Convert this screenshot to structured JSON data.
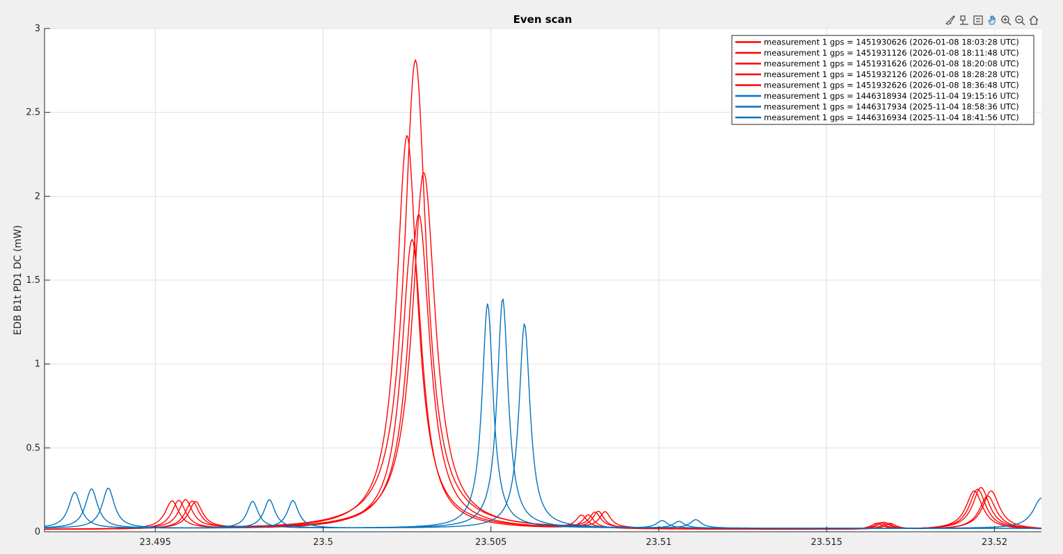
{
  "chart_data": {
    "type": "line",
    "title": "Even scan",
    "xlabel": "",
    "ylabel": "EDB B1t PD1 DC (mW)",
    "xlim": [
      23.4917,
      23.5214
    ],
    "ylim": [
      0,
      3
    ],
    "xticks": [
      23.495,
      23.5,
      23.505,
      23.51,
      23.515,
      23.52
    ],
    "xtick_labels": [
      "23.495",
      "23.5",
      "23.505",
      "23.51",
      "23.515",
      "23.52"
    ],
    "yticks": [
      0,
      0.5,
      1,
      1.5,
      2,
      2.5,
      3
    ],
    "ytick_labels": [
      "0",
      "0.5",
      "1",
      "1.5",
      "2",
      "2.5",
      "3"
    ],
    "grid": true,
    "legend_position": "top-right",
    "series": [
      {
        "name": "measurement 1 gps = 1451930626 (2026-01-08 18:03:28 UTC)",
        "color": "#ff0000",
        "baseline": 0.012,
        "peaks": [
          [
            23.4955,
            0.165,
            0.00025
          ],
          [
            23.5025,
            2.35,
            0.00038
          ],
          [
            23.5077,
            0.075,
            0.0002
          ],
          [
            23.5194,
            0.23,
            0.0003
          ],
          [
            23.5165,
            0.035,
            0.0002
          ]
        ]
      },
      {
        "name": "measurement 1 gps = 1451931126 (2026-01-08 18:11:48 UTC)",
        "color": "#ff0000",
        "baseline": 0.012,
        "peaks": [
          [
            23.4957,
            0.17,
            0.00025
          ],
          [
            23.50265,
            1.73,
            0.00038
          ],
          [
            23.5079,
            0.08,
            0.0002
          ],
          [
            23.5195,
            0.24,
            0.0003
          ],
          [
            23.5166,
            0.038,
            0.0002
          ]
        ]
      },
      {
        "name": "measurement 1 gps = 1451931626 (2026-01-08 18:20:08 UTC)",
        "color": "#ff0000",
        "baseline": 0.012,
        "peaks": [
          [
            23.4959,
            0.17,
            0.00025
          ],
          [
            23.50275,
            2.8,
            0.0004
          ],
          [
            23.5081,
            0.09,
            0.0002
          ],
          [
            23.5196,
            0.25,
            0.0003
          ],
          [
            23.5167,
            0.04,
            0.0002
          ]
        ]
      },
      {
        "name": "measurement 1 gps = 1451932126 (2026-01-08 18:28:28 UTC)",
        "color": "#ff0000",
        "baseline": 0.012,
        "peaks": [
          [
            23.4961,
            0.165,
            0.00025
          ],
          [
            23.50285,
            1.88,
            0.0004
          ],
          [
            23.5082,
            0.1,
            0.0002
          ],
          [
            23.5198,
            0.2,
            0.0003
          ],
          [
            23.5168,
            0.036,
            0.0002
          ]
        ]
      },
      {
        "name": "measurement 1 gps = 1451932626 (2026-01-08 18:36:48 UTC)",
        "color": "#ff0000",
        "baseline": 0.012,
        "peaks": [
          [
            23.4962,
            0.16,
            0.00025
          ],
          [
            23.503,
            2.13,
            0.00042
          ],
          [
            23.5084,
            0.095,
            0.0002
          ],
          [
            23.5199,
            0.23,
            0.0003
          ],
          [
            23.5169,
            0.034,
            0.0002
          ]
        ]
      },
      {
        "name": "measurement 1 gps = 1446318934 (2025-11-04 19:15:16 UTC)",
        "color": "#0072bd",
        "baseline": 0.02,
        "peaks": [
          [
            23.4926,
            0.215,
            0.00022
          ],
          [
            23.4979,
            0.16,
            0.0002
          ],
          [
            23.5049,
            1.34,
            0.0002
          ],
          [
            23.5101,
            0.045,
            0.0002
          ]
        ]
      },
      {
        "name": "measurement 1 gps = 1446317934 (2025-11-04 18:58:36 UTC)",
        "color": "#0072bd",
        "baseline": 0.02,
        "peaks": [
          [
            23.4931,
            0.235,
            0.00022
          ],
          [
            23.4984,
            0.17,
            0.0002
          ],
          [
            23.50535,
            1.37,
            0.0002
          ],
          [
            23.5106,
            0.04,
            0.0002
          ]
        ]
      },
      {
        "name": "measurement 1 gps = 1446316934 (2025-11-04 18:41:56 UTC)",
        "color": "#0072bd",
        "baseline": 0.02,
        "peaks": [
          [
            23.4936,
            0.24,
            0.00022
          ],
          [
            23.4991,
            0.165,
            0.0002
          ],
          [
            23.506,
            1.22,
            0.0002
          ],
          [
            23.5111,
            0.05,
            0.0002
          ],
          [
            23.5214,
            0.18,
            0.0003
          ]
        ]
      }
    ]
  },
  "toolbar": {
    "icons": [
      "brush-icon",
      "datatip-icon",
      "restore-view-icon",
      "pan-icon",
      "zoom-in-icon",
      "zoom-out-icon",
      "home-icon"
    ]
  }
}
